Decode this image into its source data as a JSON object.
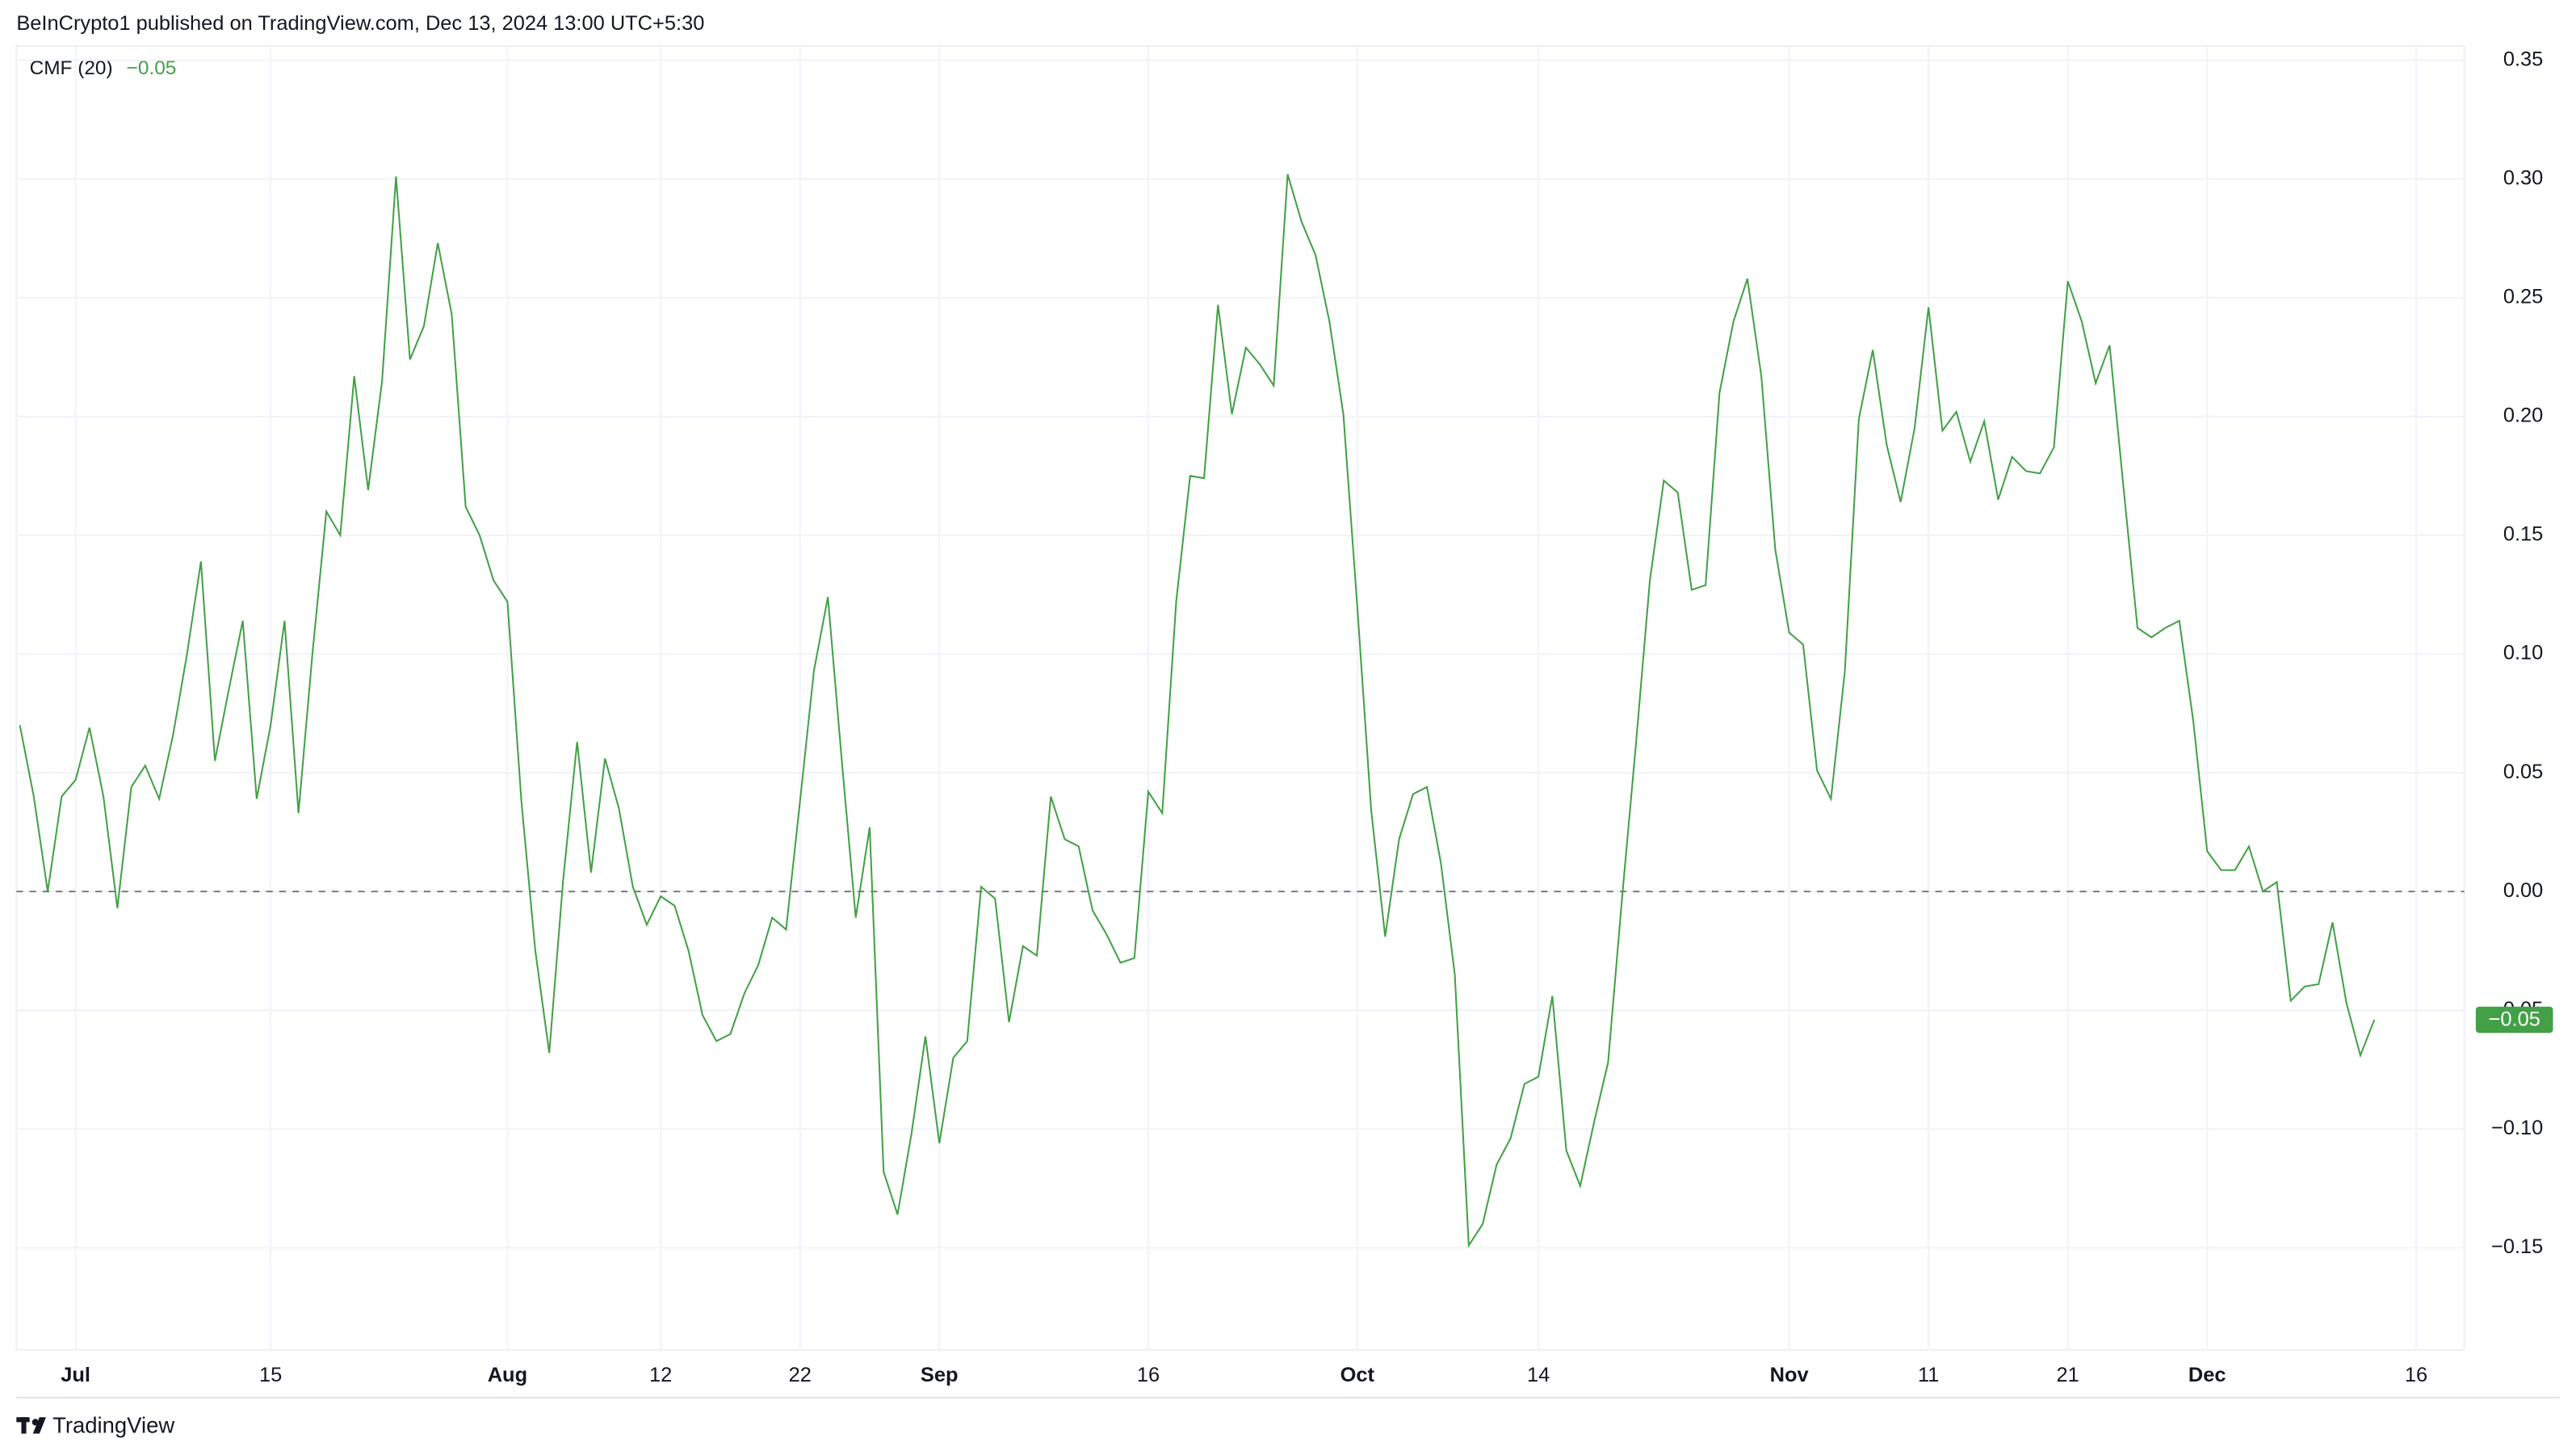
{
  "header": {
    "published": "BeInCrypto1 published on TradingView.com, Dec 13, 2024 13:00 UTC+5:30"
  },
  "footer": {
    "brand": "TradingView"
  },
  "chart_data": {
    "type": "line",
    "x": [
      "2024-06-27",
      "2024-06-28",
      "2024-06-29",
      "2024-06-30",
      "2024-07-01",
      "2024-07-02",
      "2024-07-03",
      "2024-07-04",
      "2024-07-05",
      "2024-07-06",
      "2024-07-07",
      "2024-07-08",
      "2024-07-09",
      "2024-07-10",
      "2024-07-11",
      "2024-07-12",
      "2024-07-13",
      "2024-07-14",
      "2024-07-15",
      "2024-07-16",
      "2024-07-17",
      "2024-07-18",
      "2024-07-19",
      "2024-07-20",
      "2024-07-21",
      "2024-07-22",
      "2024-07-23",
      "2024-07-24",
      "2024-07-25",
      "2024-07-26",
      "2024-07-27",
      "2024-07-28",
      "2024-07-29",
      "2024-07-30",
      "2024-07-31",
      "2024-08-01",
      "2024-08-02",
      "2024-08-03",
      "2024-08-04",
      "2024-08-05",
      "2024-08-06",
      "2024-08-07",
      "2024-08-08",
      "2024-08-09",
      "2024-08-10",
      "2024-08-11",
      "2024-08-12",
      "2024-08-13",
      "2024-08-14",
      "2024-08-15",
      "2024-08-16",
      "2024-08-17",
      "2024-08-18",
      "2024-08-19",
      "2024-08-20",
      "2024-08-21",
      "2024-08-22",
      "2024-08-23",
      "2024-08-24",
      "2024-08-25",
      "2024-08-26",
      "2024-08-27",
      "2024-08-28",
      "2024-08-29",
      "2024-08-30",
      "2024-08-31",
      "2024-09-01",
      "2024-09-02",
      "2024-09-03",
      "2024-09-04",
      "2024-09-05",
      "2024-09-06",
      "2024-09-07",
      "2024-09-08",
      "2024-09-09",
      "2024-09-10",
      "2024-09-11",
      "2024-09-12",
      "2024-09-13",
      "2024-09-14",
      "2024-09-15",
      "2024-09-16",
      "2024-09-17",
      "2024-09-18",
      "2024-09-19",
      "2024-09-20",
      "2024-09-21",
      "2024-09-22",
      "2024-09-23",
      "2024-09-24",
      "2024-09-25",
      "2024-09-26",
      "2024-09-27",
      "2024-09-28",
      "2024-09-29",
      "2024-09-30",
      "2024-10-01",
      "2024-10-02",
      "2024-10-03",
      "2024-10-04",
      "2024-10-05",
      "2024-10-06",
      "2024-10-07",
      "2024-10-08",
      "2024-10-09",
      "2024-10-10",
      "2024-10-11",
      "2024-10-12",
      "2024-10-13",
      "2024-10-14",
      "2024-10-15",
      "2024-10-16",
      "2024-10-17",
      "2024-10-18",
      "2024-10-19",
      "2024-10-20",
      "2024-10-21",
      "2024-10-22",
      "2024-10-23",
      "2024-10-24",
      "2024-10-25",
      "2024-10-26",
      "2024-10-27",
      "2024-10-28",
      "2024-10-29",
      "2024-10-30",
      "2024-10-31",
      "2024-11-01",
      "2024-11-02",
      "2024-11-03",
      "2024-11-04",
      "2024-11-05",
      "2024-11-06",
      "2024-11-07",
      "2024-11-08",
      "2024-11-09",
      "2024-11-10",
      "2024-11-11",
      "2024-11-12",
      "2024-11-13",
      "2024-11-14",
      "2024-11-15",
      "2024-11-16",
      "2024-11-17",
      "2024-11-18",
      "2024-11-19",
      "2024-11-20",
      "2024-11-21",
      "2024-11-22",
      "2024-11-23",
      "2024-11-24",
      "2024-11-25",
      "2024-11-26",
      "2024-11-27",
      "2024-11-28",
      "2024-11-29",
      "2024-11-30",
      "2024-12-01",
      "2024-12-02",
      "2024-12-03",
      "2024-12-04",
      "2024-12-05",
      "2024-12-06",
      "2024-12-07",
      "2024-12-08",
      "2024-12-09",
      "2024-12-10",
      "2024-12-11",
      "2024-12-12",
      "2024-12-13"
    ],
    "series": [
      {
        "name": "CMF (20)",
        "color": "#43a047",
        "current_value_label": "−0.05",
        "values": [
          0.07,
          0.04,
          0.0,
          0.04,
          0.047,
          0.069,
          0.04,
          -0.007,
          0.044,
          0.053,
          0.039,
          0.066,
          0.1,
          0.139,
          0.055,
          0.085,
          0.114,
          0.039,
          0.07,
          0.114,
          0.033,
          0.1,
          0.16,
          0.15,
          0.217,
          0.169,
          0.215,
          0.301,
          0.224,
          0.238,
          0.273,
          0.243,
          0.162,
          0.15,
          0.131,
          0.122,
          0.038,
          -0.025,
          -0.068,
          0.005,
          0.063,
          0.008,
          0.056,
          0.035,
          0.002,
          -0.014,
          -0.002,
          -0.006,
          -0.025,
          -0.052,
          -0.063,
          -0.06,
          -0.043,
          -0.031,
          -0.011,
          -0.016,
          0.038,
          0.093,
          0.124,
          0.055,
          -0.011,
          0.027,
          -0.118,
          -0.136,
          -0.102,
          -0.061,
          -0.106,
          -0.07,
          -0.063,
          0.002,
          -0.003,
          -0.055,
          -0.023,
          -0.027,
          0.04,
          0.022,
          0.019,
          -0.008,
          -0.018,
          -0.03,
          -0.028,
          0.042,
          0.033,
          0.122,
          0.175,
          0.174,
          0.247,
          0.201,
          0.229,
          0.222,
          0.213,
          0.302,
          0.282,
          0.268,
          0.24,
          0.201,
          0.12,
          0.034,
          -0.019,
          0.022,
          0.041,
          0.044,
          0.012,
          -0.035,
          -0.149,
          -0.14,
          -0.115,
          -0.104,
          -0.081,
          -0.078,
          -0.044,
          -0.109,
          -0.124,
          -0.097,
          -0.072,
          -0.003,
          0.062,
          0.131,
          0.173,
          0.168,
          0.127,
          0.129,
          0.21,
          0.24,
          0.258,
          0.217,
          0.144,
          0.109,
          0.104,
          0.051,
          0.039,
          0.093,
          0.199,
          0.228,
          0.188,
          0.164,
          0.195,
          0.246,
          0.194,
          0.202,
          0.181,
          0.198,
          0.165,
          0.183,
          0.177,
          0.176,
          0.187,
          0.257,
          0.24,
          0.214,
          0.23,
          0.17,
          0.111,
          0.107,
          0.111,
          0.114,
          0.072,
          0.017,
          0.009,
          0.009,
          0.019,
          0.0,
          0.004,
          -0.046,
          -0.04,
          -0.039,
          -0.013,
          -0.047,
          -0.069,
          -0.054
        ]
      }
    ],
    "xlim": [
      "2024-06-26",
      "2024-12-20"
    ],
    "xticks": [
      {
        "value": "2024-07-01",
        "label": "Jul"
      },
      {
        "value": "2024-07-15",
        "label": "15"
      },
      {
        "value": "2024-08-01",
        "label": "Aug"
      },
      {
        "value": "2024-08-12",
        "label": "12"
      },
      {
        "value": "2024-08-22",
        "label": "22"
      },
      {
        "value": "2024-09-01",
        "label": "Sep"
      },
      {
        "value": "2024-09-16",
        "label": "16"
      },
      {
        "value": "2024-10-01",
        "label": "Oct"
      },
      {
        "value": "2024-10-14",
        "label": "14"
      },
      {
        "value": "2024-11-01",
        "label": "Nov"
      },
      {
        "value": "2024-11-11",
        "label": "11"
      },
      {
        "value": "2024-11-21",
        "label": "21"
      },
      {
        "value": "2024-12-01",
        "label": "Dec"
      },
      {
        "value": "2024-12-16",
        "label": "16"
      }
    ],
    "ylim": [
      -0.193,
      0.356
    ],
    "yticks": [
      {
        "value": -0.15,
        "label": "−0.15"
      },
      {
        "value": -0.1,
        "label": "−0.10"
      },
      {
        "value": -0.05,
        "label": "−0.05"
      },
      {
        "value": 0,
        "label": "0.00"
      },
      {
        "value": 0.05,
        "label": "0.05"
      },
      {
        "value": 0.1,
        "label": "0.10"
      },
      {
        "value": 0.15,
        "label": "0.15"
      },
      {
        "value": 0.2,
        "label": "0.20"
      },
      {
        "value": 0.25,
        "label": "0.25"
      },
      {
        "value": 0.3,
        "label": "0.30"
      },
      {
        "value": 0.35,
        "label": "0.35"
      }
    ],
    "grid": true,
    "hline": 0
  }
}
